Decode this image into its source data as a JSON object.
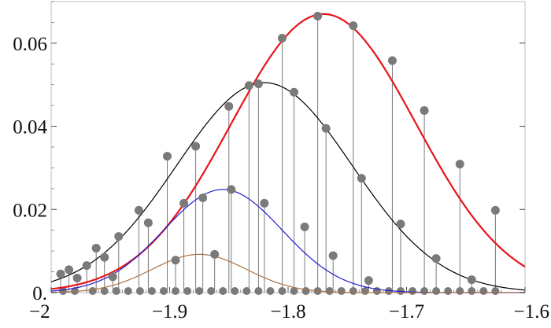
{
  "chart_data": {
    "type": "scatter",
    "title": "",
    "xlabel": "",
    "ylabel": "",
    "xlim": [
      -2.0,
      -1.6
    ],
    "ylim": [
      0.0,
      0.07
    ],
    "grid": false,
    "x_ticks": [
      {
        "value": -2.0,
        "label": "−2"
      },
      {
        "value": -1.9,
        "label": "−1.9"
      },
      {
        "value": -1.8,
        "label": "−1.8"
      },
      {
        "value": -1.7,
        "label": "−1.7"
      },
      {
        "value": -1.6,
        "label": "−1.6"
      }
    ],
    "y_ticks": [
      {
        "value": 0.0,
        "label": "0."
      },
      {
        "value": 0.02,
        "label": "0.02"
      },
      {
        "value": 0.04,
        "label": "0.04"
      },
      {
        "value": 0.06,
        "label": "0.06"
      }
    ],
    "marker_color": "#7a7a7a",
    "stem_color": "#7a7a7a",
    "curves": [
      {
        "color": "#e8141b",
        "peak_x": -1.77,
        "peak_y": 0.067,
        "sigma": 0.078
      },
      {
        "color": "#000000",
        "peak_x": -1.82,
        "peak_y": 0.0505,
        "sigma": 0.074
      },
      {
        "color": "#1f1fd6",
        "peak_x": -1.855,
        "peak_y": 0.0248,
        "sigma": 0.05
      },
      {
        "color": "#a8744a",
        "peak_x": -1.875,
        "peak_y": 0.0092,
        "sigma": 0.04
      }
    ],
    "points": [
      {
        "x": -1.992,
        "y": 0.0045
      },
      {
        "x": -1.985,
        "y": 0.0055
      },
      {
        "x": -1.978,
        "y": 0.0035
      },
      {
        "x": -1.97,
        "y": 0.0065
      },
      {
        "x": -1.962,
        "y": 0.0107
      },
      {
        "x": -1.955,
        "y": 0.0085
      },
      {
        "x": -1.948,
        "y": 0.0038
      },
      {
        "x": -1.943,
        "y": 0.0135
      },
      {
        "x": -1.926,
        "y": 0.0198
      },
      {
        "x": -1.918,
        "y": 0.0168
      },
      {
        "x": -1.902,
        "y": 0.0328
      },
      {
        "x": -1.895,
        "y": 0.0078
      },
      {
        "x": -1.888,
        "y": 0.0215
      },
      {
        "x": -1.878,
        "y": 0.0352
      },
      {
        "x": -1.872,
        "y": 0.0228
      },
      {
        "x": -1.862,
        "y": 0.0092
      },
      {
        "x": -1.85,
        "y": 0.0448
      },
      {
        "x": -1.848,
        "y": 0.0248
      },
      {
        "x": -1.833,
        "y": 0.0498
      },
      {
        "x": -1.825,
        "y": 0.0502
      },
      {
        "x": -1.82,
        "y": 0.0215
      },
      {
        "x": -1.805,
        "y": 0.0612
      },
      {
        "x": -1.795,
        "y": 0.0482
      },
      {
        "x": -1.786,
        "y": 0.0158
      },
      {
        "x": -1.775,
        "y": 0.0665
      },
      {
        "x": -1.768,
        "y": 0.0395
      },
      {
        "x": -1.762,
        "y": 0.0089
      },
      {
        "x": -1.745,
        "y": 0.0642
      },
      {
        "x": -1.738,
        "y": 0.0275
      },
      {
        "x": -1.732,
        "y": 0.0029
      },
      {
        "x": -1.712,
        "y": 0.0558
      },
      {
        "x": -1.705,
        "y": 0.0165
      },
      {
        "x": -1.685,
        "y": 0.0438
      },
      {
        "x": -1.675,
        "y": 0.0082
      },
      {
        "x": -1.655,
        "y": 0.0309
      },
      {
        "x": -1.645,
        "y": 0.0031
      },
      {
        "x": -1.625,
        "y": 0.0198
      }
    ],
    "baseline_points_x": [
      -1.99,
      -1.98,
      -1.965,
      -1.955,
      -1.945,
      -1.935,
      -1.925,
      -1.915,
      -1.905,
      -1.895,
      -1.885,
      -1.875,
      -1.865,
      -1.855,
      -1.845,
      -1.835,
      -1.825,
      -1.815,
      -1.805,
      -1.795,
      -1.785,
      -1.775,
      -1.765,
      -1.755,
      -1.745,
      -1.735,
      -1.725,
      -1.715,
      -1.705,
      -1.695,
      -1.685,
      -1.675,
      -1.665,
      -1.655,
      -1.645,
      -1.635,
      -1.625
    ]
  }
}
